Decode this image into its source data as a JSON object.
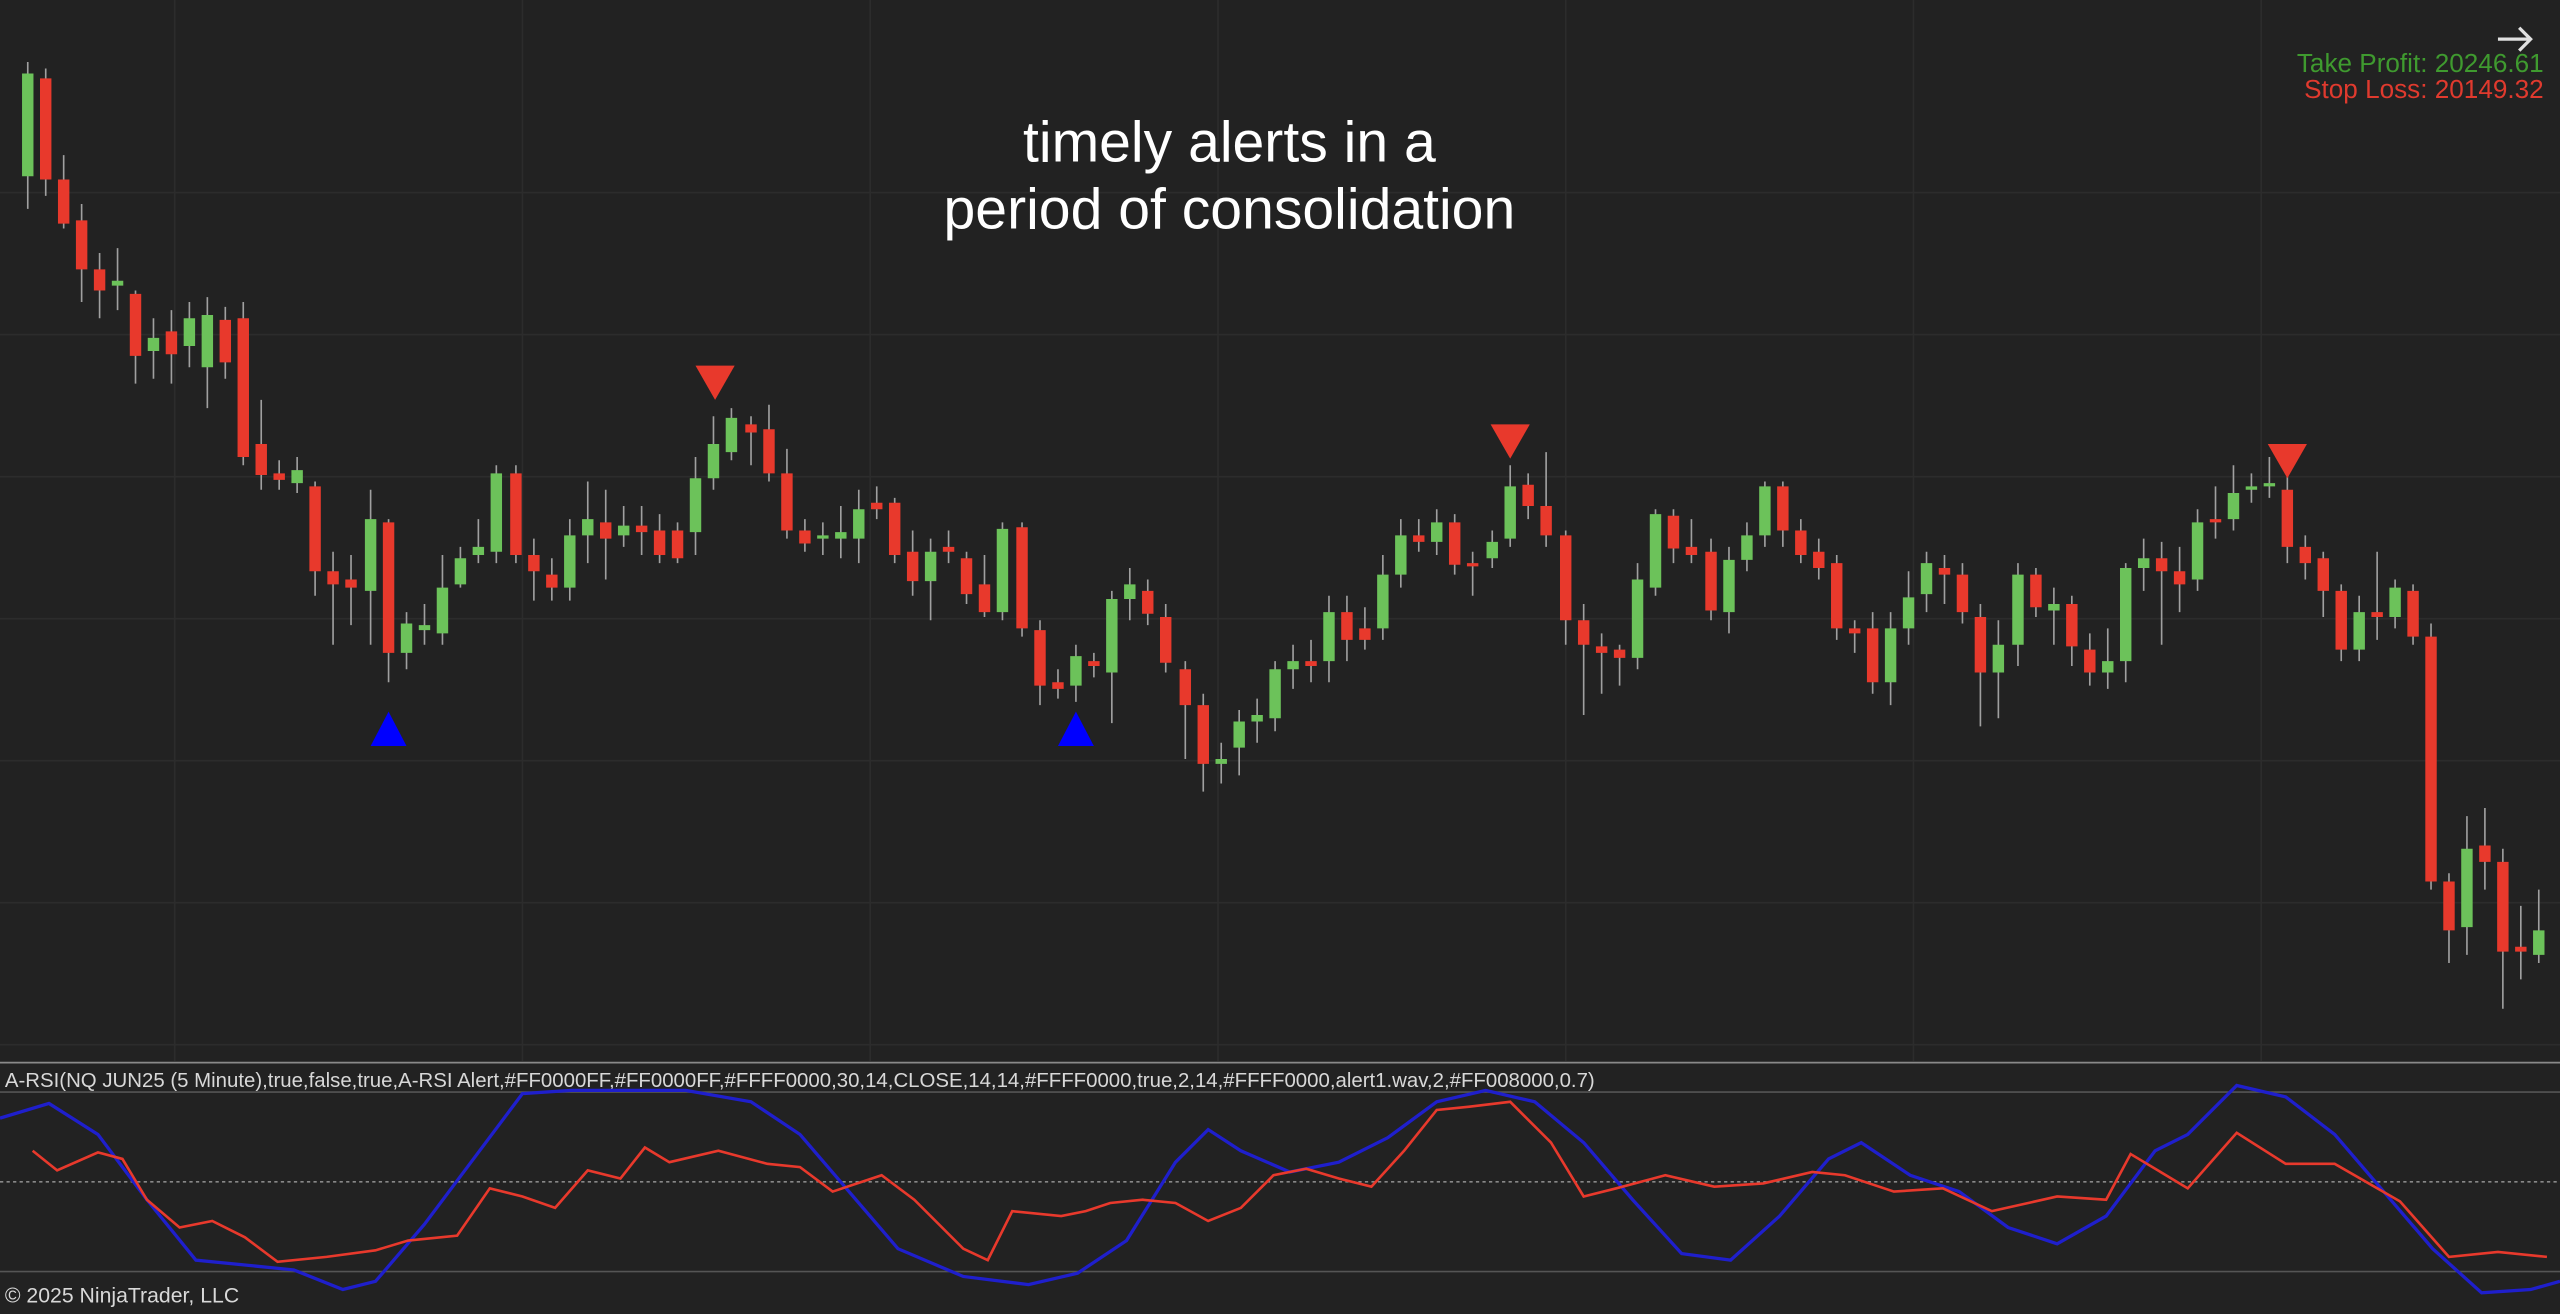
{
  "annotation": {
    "line1": "timely alerts in a",
    "line2": "period of consolidation"
  },
  "take_profit": "Take Profit: 20246.61",
  "stop_loss": "Stop Loss: 20149.32",
  "indicator_label": "A-RSI(NQ JUN25 (5 Minute),true,false,true,A-RSI Alert,#FF0000FF,#FF0000FF,#FFFF0000,30,14,CLOSE,14,14,#FFFF0000,true,2,14,#FFFF0000,alert1.wav,2,#FF008000,0.7)",
  "copyright": "© 2025 NinjaTrader, LLC"
}
